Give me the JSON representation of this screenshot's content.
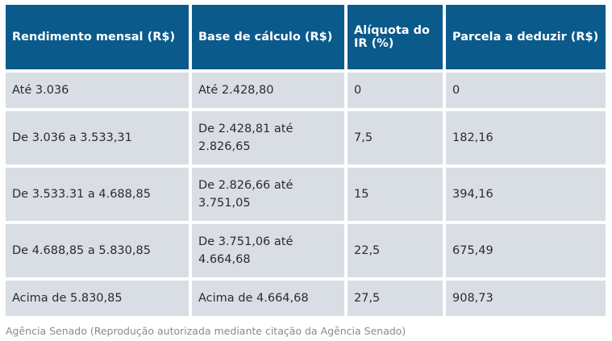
{
  "table": {
    "headers": [
      "Rendimento mensal (R$)",
      "Base de cálculo (R$)",
      "Alíquota do IR (%)",
      "Parcela a deduzir (R$)"
    ],
    "rows": [
      {
        "rendimento": "Até 3.036",
        "base": [
          "Até 2.428,80"
        ],
        "aliquota": "0",
        "parcela": "0"
      },
      {
        "rendimento": "De 3.036 a 3.533,31",
        "base": [
          "De 2.428,81 até",
          "2.826,65"
        ],
        "aliquota": "7,5",
        "parcela": "182,16"
      },
      {
        "rendimento": "De 3.533.31 a 4.688,85",
        "base": [
          "De 2.826,66 até",
          "3.751,05"
        ],
        "aliquota": "15",
        "parcela": "394,16"
      },
      {
        "rendimento": "De 4.688,85 a 5.830,85",
        "base": [
          "De 3.751,06 até",
          "4.664,68"
        ],
        "aliquota": "22,5",
        "parcela": "675,49"
      },
      {
        "rendimento": "Acima de 5.830,85",
        "base": [
          "Acima de 4.664,68"
        ],
        "aliquota": "27,5",
        "parcela": "908,73"
      }
    ]
  },
  "caption": "Agência Senado (Reprodução autorizada mediante citação da Agência Senado)",
  "colors": {
    "header_bg": "#0a5a8c",
    "cell_bg": "#d9dee4"
  }
}
